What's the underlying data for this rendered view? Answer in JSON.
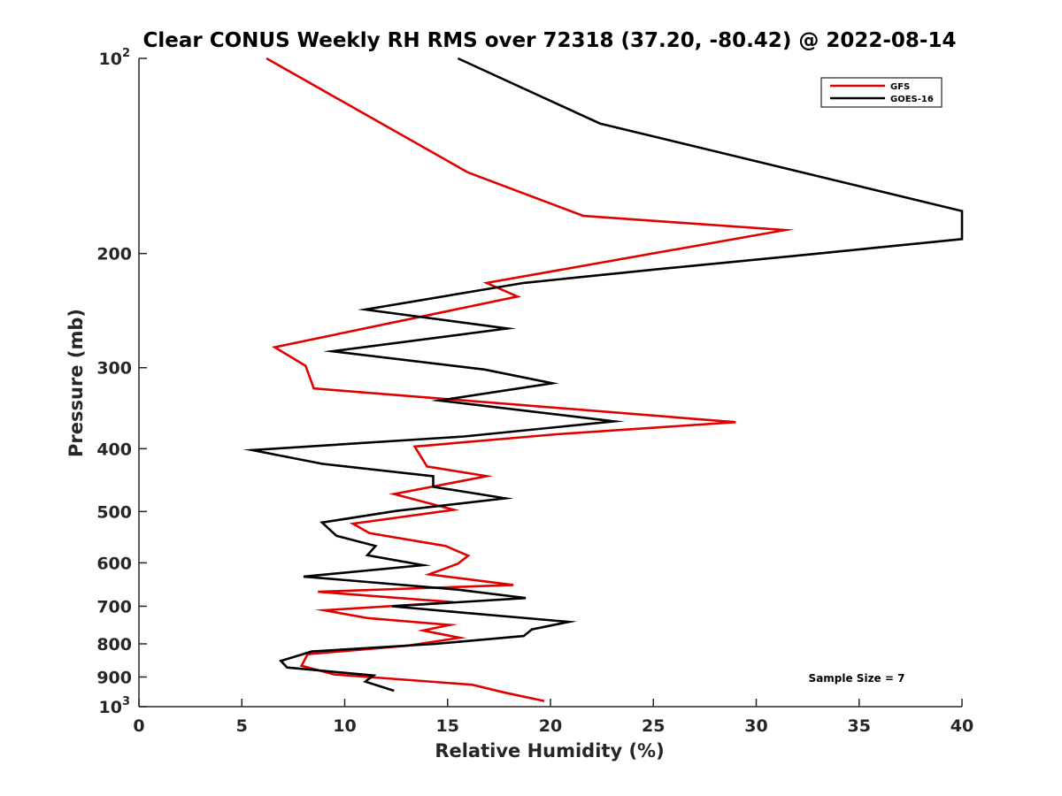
{
  "chart_data": {
    "type": "line",
    "title": "Clear CONUS Weekly RH RMS over 72318 (37.20, -80.42) @ 2022-08-14",
    "xlabel": "Relative Humidity (%)",
    "ylabel": "Pressure (mb)",
    "xlim": [
      0,
      40
    ],
    "ylim": [
      100,
      1000
    ],
    "yscale": "log",
    "yreversed": true,
    "grid": false,
    "legend_position": "top-right",
    "x_ticks": [
      {
        "value": 0,
        "label": "0"
      },
      {
        "value": 5,
        "label": "5"
      },
      {
        "value": 10,
        "label": "10"
      },
      {
        "value": 15,
        "label": "15"
      },
      {
        "value": 20,
        "label": "20"
      },
      {
        "value": 25,
        "label": "25"
      },
      {
        "value": 30,
        "label": "30"
      },
      {
        "value": 35,
        "label": "35"
      },
      {
        "value": 40,
        "label": "40"
      }
    ],
    "y_ticks": [
      {
        "value": 100,
        "base": "10",
        "exp": "2"
      },
      {
        "value": 200,
        "label": "200"
      },
      {
        "value": 300,
        "label": "300"
      },
      {
        "value": 400,
        "label": "400"
      },
      {
        "value": 500,
        "label": "500"
      },
      {
        "value": 600,
        "label": "600"
      },
      {
        "value": 700,
        "label": "700"
      },
      {
        "value": 800,
        "label": "800"
      },
      {
        "value": 900,
        "label": "900"
      },
      {
        "value": 1000,
        "base": "10",
        "exp": "3"
      }
    ],
    "annotation": "Sample Size = 7",
    "series": [
      {
        "name": "GFS",
        "color": "#e00000",
        "points": [
          [
            6.2,
            100
          ],
          [
            16,
            150
          ],
          [
            21.6,
            175
          ],
          [
            31.4,
            184
          ],
          [
            16.9,
            222
          ],
          [
            18.4,
            233
          ],
          [
            6.6,
            279
          ],
          [
            8.1,
            298
          ],
          [
            8.5,
            323
          ],
          [
            29,
            364
          ],
          [
            20.3,
            380
          ],
          [
            13.4,
            397
          ],
          [
            14,
            426
          ],
          [
            16.9,
            441
          ],
          [
            12.4,
            470
          ],
          [
            15.3,
            497
          ],
          [
            10.4,
            522
          ],
          [
            11.2,
            540
          ],
          [
            14.9,
            565
          ],
          [
            16,
            585
          ],
          [
            15.5,
            602
          ],
          [
            14.1,
            625
          ],
          [
            18.2,
            649
          ],
          [
            8.7,
            665
          ],
          [
            15.3,
            690
          ],
          [
            9,
            710
          ],
          [
            11.1,
            730
          ],
          [
            15.1,
            748
          ],
          [
            13.8,
            763
          ],
          [
            15.6,
            783
          ],
          [
            13.1,
            805
          ],
          [
            8.2,
            830
          ],
          [
            7.9,
            865
          ],
          [
            9.5,
            892
          ],
          [
            16.2,
            925
          ],
          [
            17.7,
            950
          ],
          [
            19.7,
            980
          ]
        ]
      },
      {
        "name": "GOES-16",
        "color": "#000000",
        "points": [
          [
            15.5,
            100
          ],
          [
            22.4,
            126
          ],
          [
            40,
            172
          ],
          [
            40,
            190
          ],
          [
            33,
            200
          ],
          [
            25.5,
            211
          ],
          [
            18.7,
            222
          ],
          [
            11,
            244
          ],
          [
            17.9,
            261
          ],
          [
            9.4,
            283
          ],
          [
            16.8,
            302
          ],
          [
            20.1,
            317
          ],
          [
            14.6,
            337
          ],
          [
            23.1,
            363
          ],
          [
            15.8,
            383
          ],
          [
            5.5,
            402
          ],
          [
            8.9,
            422
          ],
          [
            14.3,
            441
          ],
          [
            14.3,
            458
          ],
          [
            17.8,
            477
          ],
          [
            12.5,
            499
          ],
          [
            8.9,
            520
          ],
          [
            9.6,
            545
          ],
          [
            11.5,
            565
          ],
          [
            11.1,
            584
          ],
          [
            13.8,
            605
          ],
          [
            8,
            630
          ],
          [
            15.5,
            660
          ],
          [
            18.8,
            680
          ],
          [
            12.3,
            700
          ],
          [
            15.5,
            715
          ],
          [
            20.9,
            740
          ],
          [
            19.1,
            760
          ],
          [
            18.7,
            778
          ],
          [
            14.4,
            800
          ],
          [
            8.4,
            822
          ],
          [
            6.9,
            850
          ],
          [
            7.2,
            870
          ],
          [
            11.4,
            895
          ],
          [
            11,
            915
          ],
          [
            12.4,
            945
          ]
        ]
      }
    ]
  }
}
